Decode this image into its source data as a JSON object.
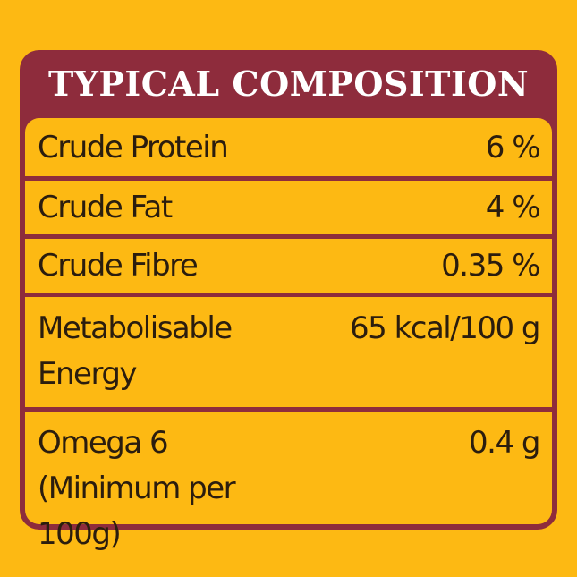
{
  "header": {
    "title": "TYPICAL COMPOSITION"
  },
  "table": {
    "rows": [
      [
        "Crude Protein",
        "6 %"
      ],
      [
        "Crude Fat",
        "4 %"
      ],
      [
        "Crude Fibre",
        "0.35 %"
      ],
      [
        "Metabolisable Energy",
        "65 kcal/100 g"
      ],
      [
        "Omega 6 (Minimum per 100g)",
        "0.4 g"
      ]
    ]
  }
}
